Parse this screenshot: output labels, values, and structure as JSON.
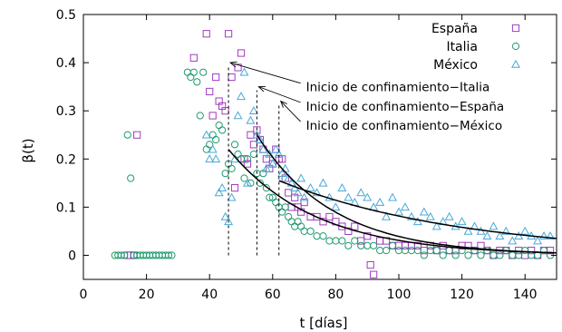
{
  "chart_data": {
    "type": "scatter",
    "xlabel": "t [días]",
    "ylabel": "β(t)",
    "xlim": [
      0,
      150
    ],
    "ylim": [
      -0.05,
      0.5
    ],
    "xticks": [
      0,
      20,
      40,
      60,
      80,
      100,
      120,
      140
    ],
    "yticks": [
      0,
      0.1,
      0.2,
      0.3,
      0.4,
      0.5
    ],
    "xtick_labels": [
      "0",
      "20",
      "40",
      "60",
      "80",
      "100",
      "120",
      "140"
    ],
    "ytick_labels": [
      "0",
      "0.1",
      "0.2",
      "0.3",
      "0.4",
      "0.5"
    ],
    "grid": false,
    "legend_position": "top-right",
    "series": [
      {
        "name": "España",
        "marker": "square",
        "color": "#a03cbf",
        "points": [
          [
            14,
            0
          ],
          [
            15,
            0
          ],
          [
            16,
            0
          ],
          [
            17,
            0.25
          ],
          [
            35,
            0.41
          ],
          [
            39,
            0.46
          ],
          [
            40,
            0.34
          ],
          [
            41,
            0.29
          ],
          [
            42,
            0.37
          ],
          [
            43,
            0.32
          ],
          [
            44,
            0.31
          ],
          [
            45,
            0.3
          ],
          [
            46,
            0.46
          ],
          [
            47,
            0.37
          ],
          [
            48,
            0.14
          ],
          [
            49,
            0.39
          ],
          [
            50,
            0.42
          ],
          [
            51,
            0.2
          ],
          [
            52,
            0.19
          ],
          [
            53,
            0.25
          ],
          [
            54,
            0.23
          ],
          [
            55,
            0.26
          ],
          [
            56,
            0.24
          ],
          [
            57,
            0.22
          ],
          [
            58,
            0.2
          ],
          [
            59,
            0.18
          ],
          [
            60,
            0.19
          ],
          [
            61,
            0.22
          ],
          [
            62,
            0.2
          ],
          [
            63,
            0.2
          ],
          [
            64,
            0.16
          ],
          [
            65,
            0.13
          ],
          [
            66,
            0.1
          ],
          [
            67,
            0.12
          ],
          [
            68,
            0.1
          ],
          [
            69,
            0.09
          ],
          [
            70,
            0.11
          ],
          [
            72,
            0.08
          ],
          [
            74,
            0.08
          ],
          [
            76,
            0.07
          ],
          [
            78,
            0.08
          ],
          [
            80,
            0.07
          ],
          [
            82,
            0.06
          ],
          [
            84,
            0.05
          ],
          [
            86,
            0.06
          ],
          [
            88,
            0.03
          ],
          [
            90,
            0.04
          ],
          [
            91,
            -0.02
          ],
          [
            92,
            -0.04
          ],
          [
            94,
            0.03
          ],
          [
            96,
            0.03
          ],
          [
            98,
            0.02
          ],
          [
            100,
            0.02
          ],
          [
            102,
            0.02
          ],
          [
            104,
            0.02
          ],
          [
            106,
            0.02
          ],
          [
            108,
            0.01
          ],
          [
            110,
            0.02
          ],
          [
            112,
            0.01
          ],
          [
            114,
            0.02
          ],
          [
            116,
            0.01
          ],
          [
            118,
            0.01
          ],
          [
            120,
            0.02
          ],
          [
            122,
            0.02
          ],
          [
            124,
            0.01
          ],
          [
            126,
            0.02
          ],
          [
            128,
            0.01
          ],
          [
            130,
            0.0
          ],
          [
            132,
            0.01
          ],
          [
            134,
            0.01
          ],
          [
            136,
            0.0
          ],
          [
            138,
            0.01
          ],
          [
            140,
            0.0
          ],
          [
            142,
            0.01
          ],
          [
            144,
            0.0
          ],
          [
            146,
            0.01
          ],
          [
            148,
            0.01
          ]
        ]
      },
      {
        "name": "Italia",
        "marker": "circle",
        "color": "#1f9a6e",
        "points": [
          [
            10,
            0
          ],
          [
            11,
            0
          ],
          [
            12,
            0
          ],
          [
            13,
            0
          ],
          [
            14,
            0.25
          ],
          [
            15,
            0.16
          ],
          [
            16,
            0
          ],
          [
            17,
            0
          ],
          [
            18,
            0
          ],
          [
            19,
            0
          ],
          [
            20,
            0
          ],
          [
            21,
            0
          ],
          [
            22,
            0
          ],
          [
            23,
            0
          ],
          [
            24,
            0
          ],
          [
            25,
            0
          ],
          [
            26,
            0
          ],
          [
            27,
            0
          ],
          [
            28,
            0
          ],
          [
            33,
            0.38
          ],
          [
            34,
            0.37
          ],
          [
            35,
            0.38
          ],
          [
            36,
            0.36
          ],
          [
            37,
            0.29
          ],
          [
            38,
            0.38
          ],
          [
            39,
            0.22
          ],
          [
            40,
            0.23
          ],
          [
            41,
            0.25
          ],
          [
            42,
            0.24
          ],
          [
            43,
            0.27
          ],
          [
            44,
            0.26
          ],
          [
            45,
            0.17
          ],
          [
            46,
            0.19
          ],
          [
            47,
            0.18
          ],
          [
            48,
            0.23
          ],
          [
            49,
            0.21
          ],
          [
            50,
            0.2
          ],
          [
            51,
            0.16
          ],
          [
            52,
            0.2
          ],
          [
            53,
            0.15
          ],
          [
            54,
            0.21
          ],
          [
            55,
            0.17
          ],
          [
            56,
            0.15
          ],
          [
            57,
            0.17
          ],
          [
            58,
            0.14
          ],
          [
            59,
            0.12
          ],
          [
            60,
            0.12
          ],
          [
            61,
            0.11
          ],
          [
            62,
            0.1
          ],
          [
            63,
            0.09
          ],
          [
            64,
            0.1
          ],
          [
            65,
            0.08
          ],
          [
            66,
            0.07
          ],
          [
            67,
            0.06
          ],
          [
            68,
            0.07
          ],
          [
            69,
            0.06
          ],
          [
            70,
            0.05
          ],
          [
            72,
            0.05
          ],
          [
            74,
            0.04
          ],
          [
            76,
            0.04
          ],
          [
            78,
            0.03
          ],
          [
            80,
            0.03
          ],
          [
            82,
            0.03
          ],
          [
            84,
            0.02
          ],
          [
            86,
            0.03
          ],
          [
            88,
            0.02
          ],
          [
            90,
            0.02
          ],
          [
            92,
            0.02
          ],
          [
            94,
            0.01
          ],
          [
            96,
            0.01
          ],
          [
            98,
            0.02
          ],
          [
            100,
            0.01
          ],
          [
            102,
            0.01
          ],
          [
            104,
            0.01
          ],
          [
            106,
            0.01
          ],
          [
            108,
            0.0
          ],
          [
            110,
            0.01
          ],
          [
            112,
            0.01
          ],
          [
            114,
            0.0
          ],
          [
            116,
            0.01
          ],
          [
            118,
            0.0
          ],
          [
            120,
            0.01
          ],
          [
            122,
            0.0
          ],
          [
            124,
            0.01
          ],
          [
            126,
            0.0
          ],
          [
            128,
            0.01
          ],
          [
            130,
            0.0
          ],
          [
            132,
            0.0
          ],
          [
            134,
            0.01
          ],
          [
            136,
            0.0
          ],
          [
            138,
            0.0
          ],
          [
            140,
            0.01
          ],
          [
            142,
            0.0
          ],
          [
            144,
            0.0
          ],
          [
            146,
            0.01
          ],
          [
            148,
            0.0
          ]
        ]
      },
      {
        "name": "México",
        "marker": "triangle",
        "color": "#4aa8d8",
        "points": [
          [
            39,
            0.25
          ],
          [
            40,
            0.2
          ],
          [
            41,
            0.22
          ],
          [
            42,
            0.2
          ],
          [
            43,
            0.13
          ],
          [
            44,
            0.14
          ],
          [
            45,
            0.08
          ],
          [
            46,
            0.07
          ],
          [
            47,
            0.12
          ],
          [
            48,
            0.2
          ],
          [
            49,
            0.29
          ],
          [
            50,
            0.33
          ],
          [
            51,
            0.38
          ],
          [
            52,
            0.15
          ],
          [
            53,
            0.28
          ],
          [
            54,
            0.3
          ],
          [
            55,
            0.25
          ],
          [
            56,
            0.24
          ],
          [
            57,
            0.22
          ],
          [
            58,
            0.18
          ],
          [
            59,
            0.21
          ],
          [
            60,
            0.19
          ],
          [
            61,
            0.22
          ],
          [
            62,
            0.21
          ],
          [
            63,
            0.17
          ],
          [
            64,
            0.18
          ],
          [
            65,
            0.16
          ],
          [
            66,
            0.15
          ],
          [
            67,
            0.14
          ],
          [
            68,
            0.13
          ],
          [
            69,
            0.16
          ],
          [
            70,
            0.12
          ],
          [
            72,
            0.14
          ],
          [
            74,
            0.13
          ],
          [
            76,
            0.15
          ],
          [
            78,
            0.12
          ],
          [
            80,
            0.1
          ],
          [
            82,
            0.14
          ],
          [
            84,
            0.12
          ],
          [
            86,
            0.11
          ],
          [
            88,
            0.13
          ],
          [
            90,
            0.12
          ],
          [
            92,
            0.1
          ],
          [
            94,
            0.11
          ],
          [
            96,
            0.08
          ],
          [
            98,
            0.12
          ],
          [
            100,
            0.09
          ],
          [
            102,
            0.1
          ],
          [
            104,
            0.08
          ],
          [
            106,
            0.07
          ],
          [
            108,
            0.09
          ],
          [
            110,
            0.08
          ],
          [
            112,
            0.06
          ],
          [
            114,
            0.07
          ],
          [
            116,
            0.08
          ],
          [
            118,
            0.06
          ],
          [
            120,
            0.07
          ],
          [
            122,
            0.05
          ],
          [
            124,
            0.06
          ],
          [
            126,
            0.05
          ],
          [
            128,
            0.04
          ],
          [
            130,
            0.06
          ],
          [
            132,
            0.04
          ],
          [
            134,
            0.05
          ],
          [
            136,
            0.03
          ],
          [
            138,
            0.04
          ],
          [
            140,
            0.05
          ],
          [
            142,
            0.04
          ],
          [
            144,
            0.03
          ],
          [
            146,
            0.04
          ],
          [
            148,
            0.04
          ]
        ]
      }
    ],
    "fits": [
      {
        "x0": 46,
        "x1": 150,
        "y0": 0.22,
        "y1": 0.005,
        "shape": "exp"
      },
      {
        "x0": 55,
        "x1": 150,
        "y0": 0.25,
        "y1": 0.005,
        "shape": "exp"
      },
      {
        "x0": 62,
        "x1": 150,
        "y0": 0.155,
        "y1": 0.035,
        "shape": "linear"
      }
    ],
    "annotations": [
      {
        "label": "Inicio de confinamiento−Italia",
        "x": 46,
        "arrow_y": 0.4,
        "label_x": 70,
        "label_y": 0.35
      },
      {
        "label": "Inicio de confinamiento−España",
        "x": 55,
        "arrow_y": 0.35,
        "label_x": 70,
        "label_y": 0.31
      },
      {
        "label": "Inicio de confinamiento−México",
        "x": 62,
        "arrow_y": 0.32,
        "label_x": 70,
        "label_y": 0.27
      }
    ]
  }
}
